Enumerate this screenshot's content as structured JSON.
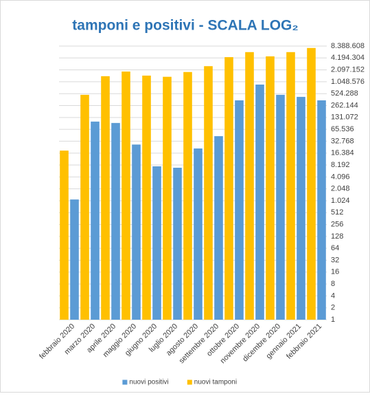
{
  "chart_data": {
    "type": "bar",
    "title": "tamponi e positivi - SCALA LOG₂",
    "categories": [
      "febbraio 2020",
      "marzo 2020",
      "aprile 2020",
      "maggio 2020",
      "giugno 2020",
      "luglio 2020",
      "agosto 2020",
      "settembre 2020",
      "ottobre 2020",
      "novembre 2020",
      "dicembre 2020",
      "gennaio 2021",
      "febbraio 2021"
    ],
    "series": [
      {
        "name": "nuovi positivi",
        "color": "#5b9bd5",
        "values": [
          1100,
          103000,
          95000,
          27000,
          7600,
          7000,
          21500,
          44000,
          355000,
          890000,
          490000,
          435000,
          355000
        ]
      },
      {
        "name": "nuovi tamponi",
        "color": "#ffc000",
        "values": [
          19000,
          490000,
          1450000,
          1900000,
          1500000,
          1400000,
          1850000,
          2600000,
          4400000,
          5900000,
          4600000,
          5900000,
          7500000
        ]
      }
    ],
    "ylim": [
      1,
      8388608
    ],
    "log_scale": true,
    "log_base": 2,
    "y_axis_side": "right",
    "yticks": [
      1,
      2,
      4,
      8,
      16,
      32,
      64,
      128,
      256,
      512,
      {
        "value": 1024,
        "label": "1.024"
      },
      {
        "value": 2048,
        "label": "2.048"
      },
      {
        "value": 4096,
        "label": "4.096"
      },
      {
        "value": 8192,
        "label": "8.192"
      },
      {
        "value": 16384,
        "label": "16.384"
      },
      {
        "value": 32768,
        "label": "32.768"
      },
      {
        "value": 65536,
        "label": "65.536"
      },
      {
        "value": 131072,
        "label": "131.072"
      },
      {
        "value": 262144,
        "label": "262.144"
      },
      {
        "value": 524288,
        "label": "524.288"
      },
      {
        "value": 1048576,
        "label": "1.048.576"
      },
      {
        "value": 2097152,
        "label": "2.097.152"
      },
      {
        "value": 4194304,
        "label": "4.194.304"
      },
      {
        "value": 8388608,
        "label": "8.388.608"
      }
    ],
    "grid": true,
    "legend": "bottom"
  }
}
